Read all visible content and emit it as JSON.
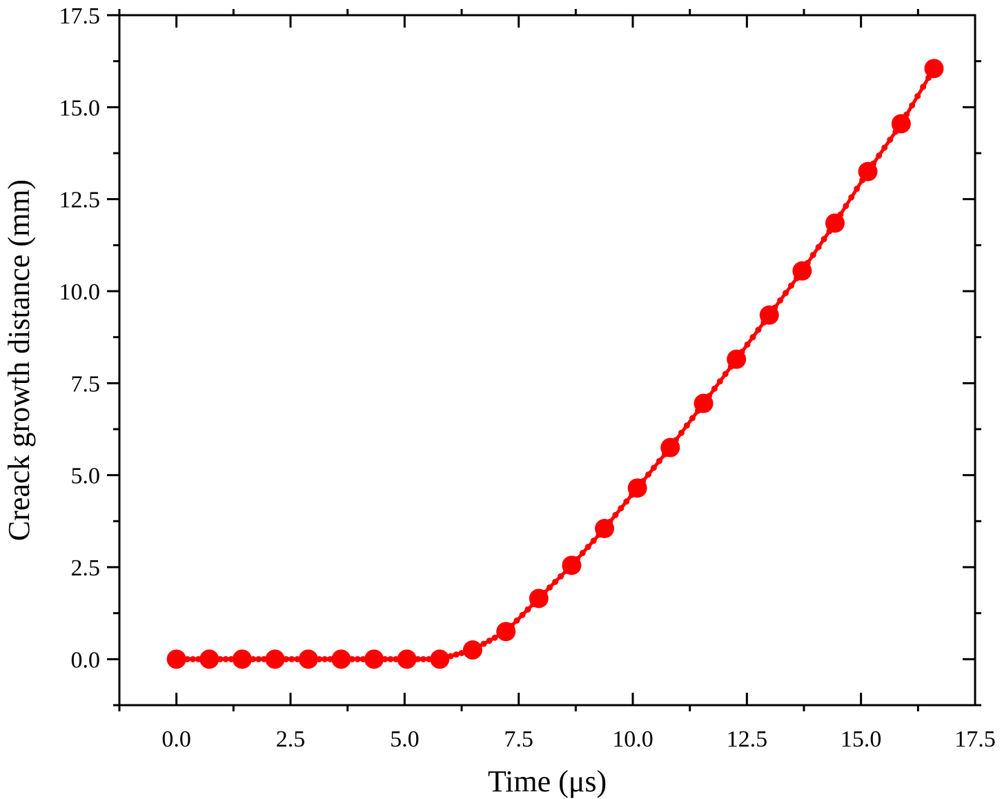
{
  "chart_data": {
    "type": "line",
    "xlabel": "Time (μs)",
    "ylabel": "Creack growth distance (mm)",
    "xlim": [
      -1.25,
      17.5
    ],
    "ylim": [
      -1.25,
      17.5
    ],
    "x_ticks": [
      "0.0",
      "2.5",
      "5.0",
      "7.5",
      "10.0",
      "12.5",
      "15.0",
      "17.5"
    ],
    "y_ticks": [
      "0.0",
      "2.5",
      "5.0",
      "7.5",
      "10.0",
      "12.5",
      "15.0",
      "17.5"
    ],
    "grid": false,
    "line_color": "#ff0000",
    "series": [
      {
        "x": [
          0.0,
          0.72,
          1.44,
          2.16,
          2.89,
          3.61,
          4.33,
          5.05,
          5.77,
          6.49,
          7.22,
          7.94,
          8.66,
          9.38,
          10.1,
          10.82,
          11.55,
          12.27,
          12.99,
          13.71,
          14.43,
          15.15,
          15.88,
          16.6
        ],
        "y": [
          0.0,
          0.0,
          0.0,
          0.0,
          0.0,
          0.0,
          0.0,
          0.0,
          0.0,
          0.25,
          0.75,
          1.65,
          2.55,
          3.55,
          4.65,
          5.75,
          6.95,
          8.15,
          9.35,
          10.55,
          11.85,
          13.25,
          14.55,
          16.05
        ]
      }
    ]
  }
}
